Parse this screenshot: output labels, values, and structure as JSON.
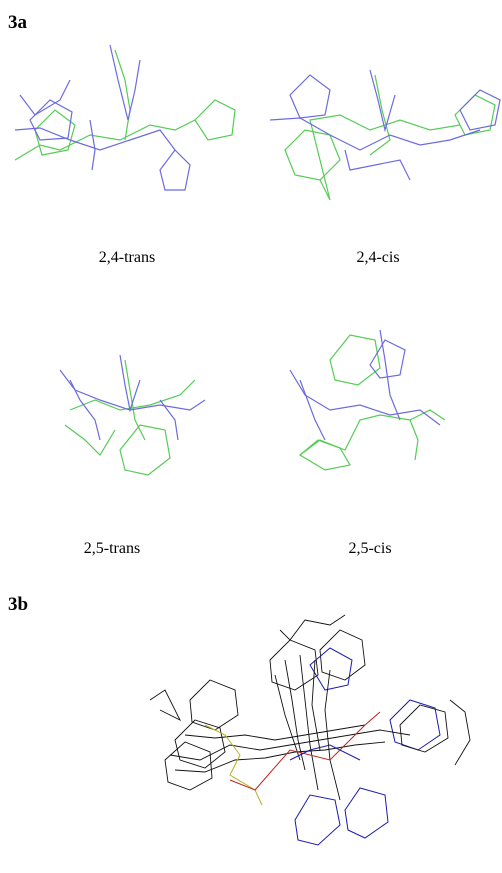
{
  "panel_a": {
    "label": "3a",
    "structures": [
      {
        "caption": "2,4-trans"
      },
      {
        "caption": "2,4-cis"
      },
      {
        "caption": "2,5-trans"
      },
      {
        "caption": "2,5-cis"
      }
    ]
  },
  "panel_b": {
    "label": "3b"
  }
}
